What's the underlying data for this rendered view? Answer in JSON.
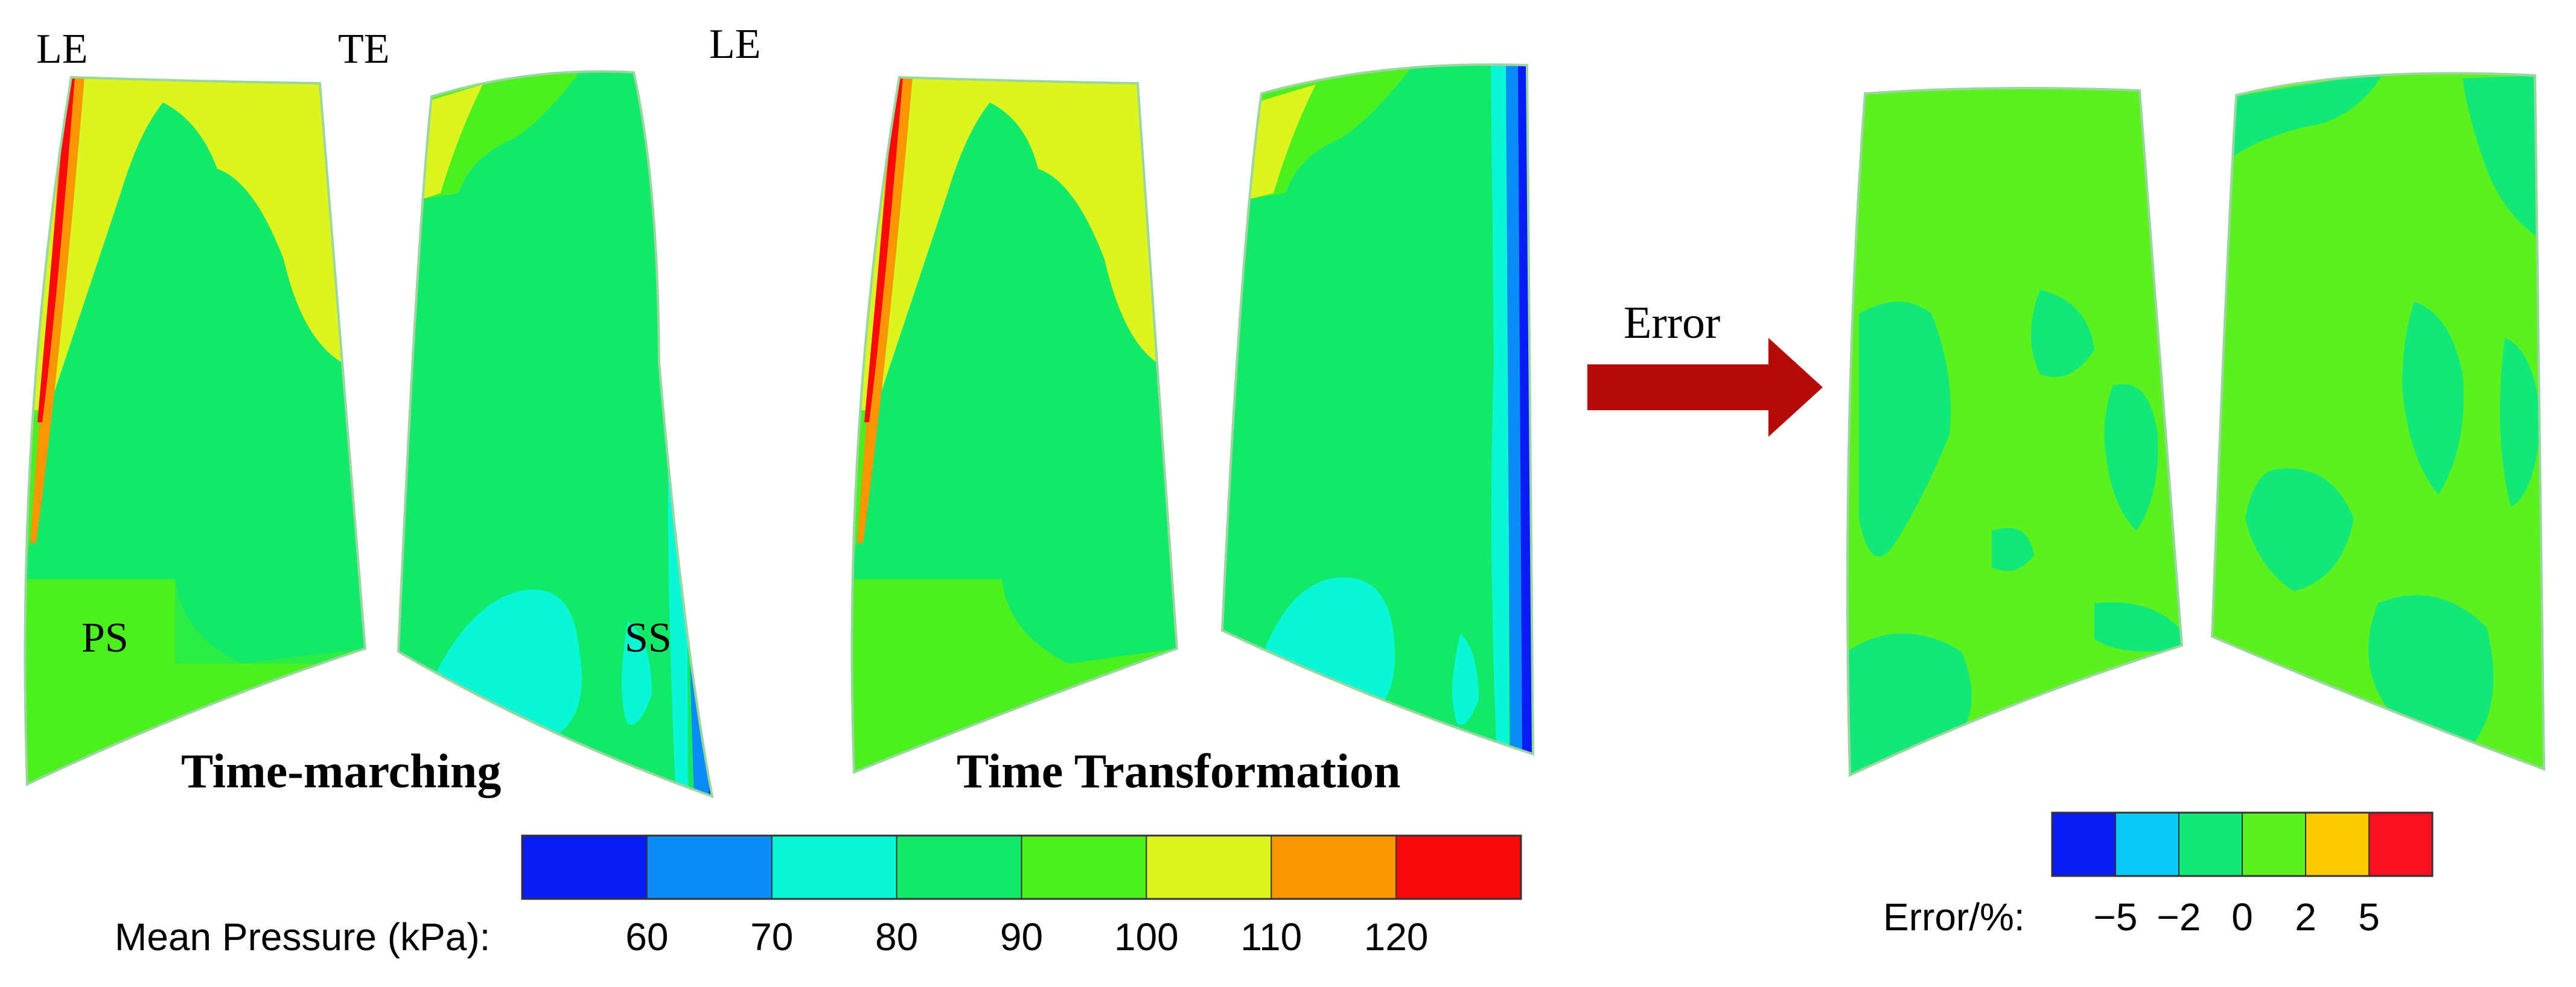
{
  "labels": {
    "le_left": "LE",
    "te": "TE",
    "le_right": "LE",
    "ps": "PS",
    "ss": "SS",
    "time_marching": "Time-marching",
    "time_transformation": "Time Transformation",
    "error": "Error"
  },
  "pressure_legend": {
    "title": "Mean Pressure (kPa):",
    "ticks": [
      "60",
      "70",
      "80",
      "90",
      "100",
      "110",
      "120"
    ],
    "colors": [
      "#0a1cf5",
      "#0a8cf8",
      "#0af7d6",
      "#12e86a",
      "#4cf01e",
      "#dcf51e",
      "#fa9600",
      "#fa0a0a"
    ]
  },
  "error_legend": {
    "title": "Error/%:",
    "ticks": [
      "−5",
      "−2",
      "0",
      "2",
      "5"
    ],
    "colors": [
      "#0a1cf5",
      "#0ac8f8",
      "#12e87a",
      "#5cf01e",
      "#fcc800",
      "#fa1020"
    ]
  },
  "arrow_color": "#b40a0a"
}
